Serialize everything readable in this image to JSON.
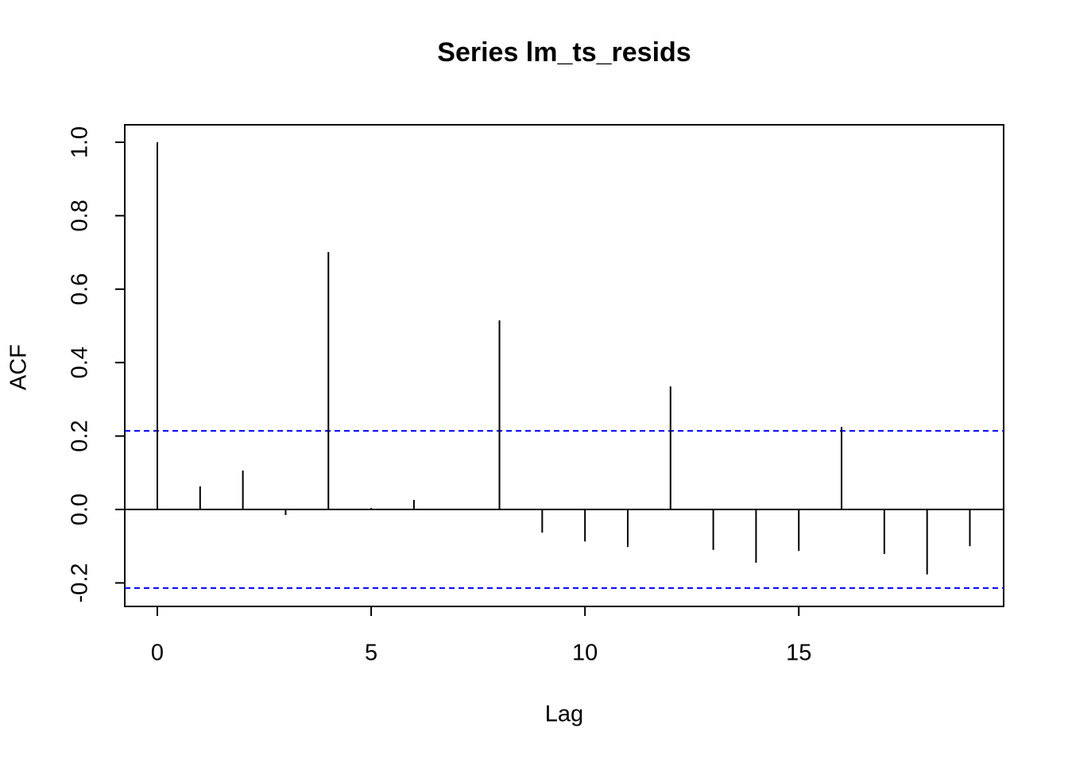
{
  "chart_data": {
    "type": "acf",
    "title": "Series  lm_ts_resids",
    "xlabel": "Lag",
    "ylabel": "ACF",
    "x": [
      0,
      1,
      2,
      3,
      4,
      5,
      6,
      7,
      8,
      9,
      10,
      11,
      12,
      13,
      14,
      15,
      16,
      17,
      18,
      19
    ],
    "values": [
      1.0,
      0.063,
      0.106,
      -0.015,
      0.701,
      0.004,
      0.026,
      0.001,
      0.515,
      -0.063,
      -0.087,
      -0.102,
      0.335,
      -0.11,
      -0.145,
      -0.113,
      0.225,
      -0.121,
      -0.177,
      -0.1
    ],
    "color": "#000000",
    "ci_lines": [
      0.214,
      -0.214
    ],
    "ci_color": "#0000ff",
    "xlim": [
      -0.762,
      19.79
    ],
    "xticks": [
      0,
      5,
      10,
      15
    ],
    "ylim": [
      -0.264,
      1.0476
    ],
    "yticks": [
      -0.2,
      {
        "value": 0,
        "label": "0.0"
      },
      0.2,
      0.4,
      0.6,
      0.8,
      {
        "value": 1,
        "label": "1.0"
      }
    ]
  }
}
